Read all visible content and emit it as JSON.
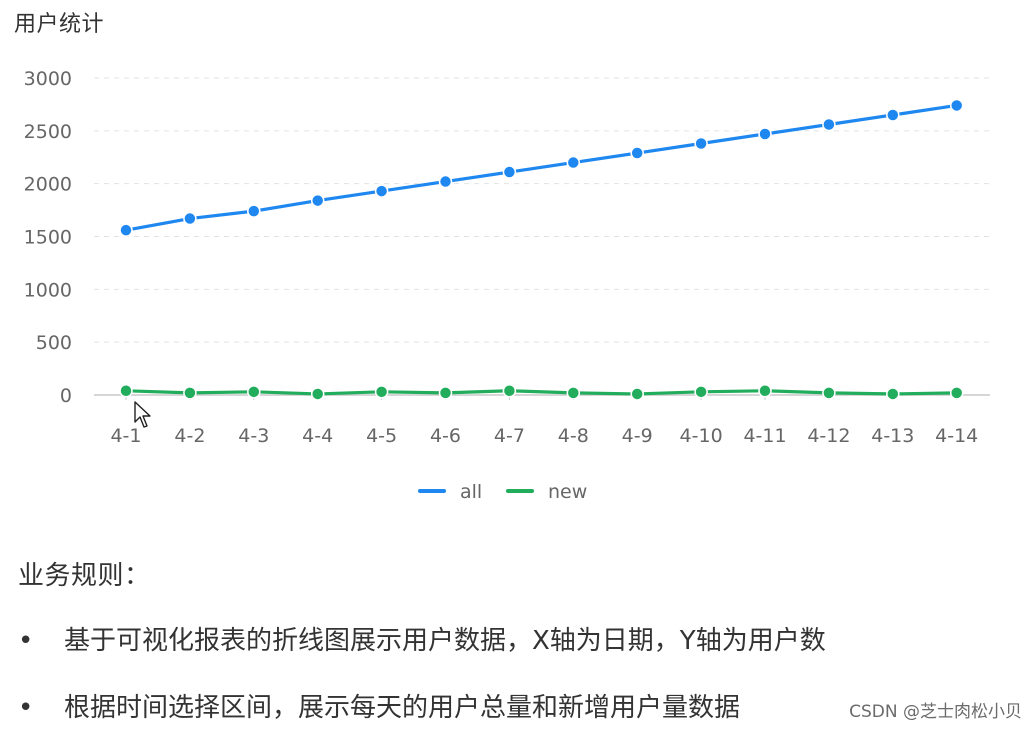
{
  "panel": {
    "title": "用户统计"
  },
  "chart_data": {
    "type": "line",
    "title": "用户统计",
    "x": [
      "4-1",
      "4-2",
      "4-3",
      "4-4",
      "4-5",
      "4-6",
      "4-7",
      "4-8",
      "4-9",
      "4-10",
      "4-11",
      "4-12",
      "4-13",
      "4-14"
    ],
    "series": [
      {
        "name": "all",
        "color": "#1e88f0",
        "values": [
          1560,
          1670,
          1740,
          1840,
          1930,
          2020,
          2110,
          2200,
          2290,
          2380,
          2470,
          2560,
          2650,
          2740
        ]
      },
      {
        "name": "new",
        "color": "#22ad5c",
        "values": [
          40,
          20,
          30,
          10,
          30,
          20,
          40,
          20,
          10,
          30,
          40,
          20,
          10,
          20
        ]
      }
    ],
    "y_ticks": [
      "0",
      "500",
      "1000",
      "1500",
      "2000",
      "2500",
      "3000"
    ],
    "ylim": [
      0,
      3000
    ],
    "grid": true,
    "grid_style": "dashed",
    "legend_position": "bottom-center"
  },
  "rules": {
    "title": "业务规则：",
    "items": [
      "基于可视化报表的折线图展示用户数据，X轴为日期，Y轴为用户数",
      "根据时间选择区间，展示每天的用户总量和新增用户量数据"
    ],
    "bullet": "•"
  },
  "watermark": "CSDN @芝士肉松小贝"
}
